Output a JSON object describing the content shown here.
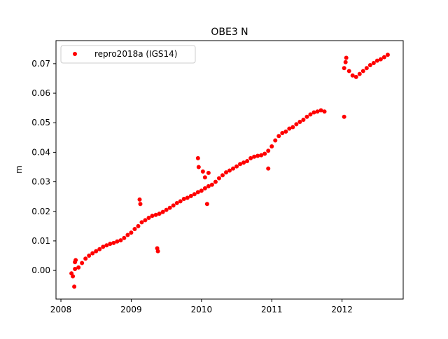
{
  "chart_data": {
    "type": "scatter",
    "title": "OBE3 N",
    "xlabel": "",
    "ylabel": "m",
    "xlim": [
      2007.93,
      2012.87
    ],
    "ylim": [
      -0.0097,
      0.0778
    ],
    "x_ticks": [
      2008,
      2009,
      2010,
      2011,
      2012
    ],
    "x_tick_labels": [
      "2008",
      "2009",
      "2010",
      "2011",
      "2012"
    ],
    "y_ticks": [
      0.0,
      0.01,
      0.02,
      0.03,
      0.04,
      0.05,
      0.06,
      0.07
    ],
    "y_tick_labels": [
      "0.00",
      "0.01",
      "0.02",
      "0.03",
      "0.04",
      "0.05",
      "0.06",
      "0.07"
    ],
    "grid": false,
    "legend_position": "top-left",
    "series": [
      {
        "name": "repro2018a (IGS14)",
        "color": "#ff0000",
        "marker": "circle",
        "x": [
          2008.15,
          2008.2,
          2008.25,
          2008.3,
          2008.35,
          2008.4,
          2008.45,
          2008.5,
          2008.55,
          2008.6,
          2008.65,
          2008.7,
          2008.75,
          2008.8,
          2008.85,
          2008.9,
          2008.95,
          2009.0,
          2009.05,
          2009.1,
          2009.15,
          2009.2,
          2009.25,
          2009.3,
          2009.35,
          2009.4,
          2009.45,
          2009.5,
          2009.55,
          2009.6,
          2009.65,
          2009.7,
          2009.75,
          2009.8,
          2009.85,
          2009.9,
          2009.95,
          2010.0,
          2010.05,
          2010.1,
          2010.15,
          2010.2,
          2010.25,
          2010.3,
          2010.35,
          2010.4,
          2010.45,
          2010.5,
          2010.55,
          2010.6,
          2010.65,
          2010.7,
          2010.75,
          2010.8,
          2010.85,
          2010.9,
          2010.95,
          2011.0,
          2011.05,
          2011.1,
          2011.15,
          2011.2,
          2011.25,
          2011.3,
          2011.35,
          2011.4,
          2011.45,
          2011.5,
          2011.55,
          2011.6,
          2011.65,
          2011.7,
          2011.75,
          2012.03,
          2012.05,
          2012.1,
          2012.15,
          2012.2,
          2012.25,
          2012.3,
          2012.35,
          2012.4,
          2012.45,
          2012.5,
          2012.55,
          2012.6,
          2012.65,
          2008.17,
          2008.19,
          2008.21,
          2008.2,
          2009.12,
          2009.13,
          2009.37,
          2009.38,
          2009.95,
          2009.96,
          2010.02,
          2010.05,
          2010.1,
          2010.08,
          2010.95,
          2012.03,
          2012.06
        ],
        "y": [
          -0.001,
          0.0005,
          0.001,
          0.0025,
          0.004,
          0.005,
          0.0058,
          0.0065,
          0.0072,
          0.008,
          0.0085,
          0.009,
          0.0093,
          0.0098,
          0.0102,
          0.011,
          0.012,
          0.0128,
          0.014,
          0.015,
          0.0163,
          0.017,
          0.0178,
          0.0185,
          0.0188,
          0.0192,
          0.0198,
          0.0205,
          0.0212,
          0.022,
          0.0228,
          0.0234,
          0.0242,
          0.0246,
          0.0252,
          0.0258,
          0.0265,
          0.027,
          0.0278,
          0.0285,
          0.029,
          0.03,
          0.0312,
          0.0322,
          0.0332,
          0.0338,
          0.0345,
          0.0352,
          0.036,
          0.0365,
          0.037,
          0.038,
          0.0385,
          0.0388,
          0.039,
          0.0395,
          0.0405,
          0.042,
          0.044,
          0.0455,
          0.0465,
          0.047,
          0.048,
          0.0485,
          0.0495,
          0.0503,
          0.051,
          0.052,
          0.0528,
          0.0535,
          0.0538,
          0.0542,
          0.0538,
          0.0685,
          0.0705,
          0.0675,
          0.066,
          0.0655,
          0.0665,
          0.0675,
          0.0685,
          0.0695,
          0.0702,
          0.071,
          0.0715,
          0.0722,
          0.073,
          -0.002,
          -0.0055,
          0.0035,
          0.0028,
          0.024,
          0.0225,
          0.0075,
          0.0065,
          0.038,
          0.035,
          0.0335,
          0.0315,
          0.033,
          0.0225,
          0.0345,
          0.052,
          0.072
        ]
      }
    ]
  }
}
